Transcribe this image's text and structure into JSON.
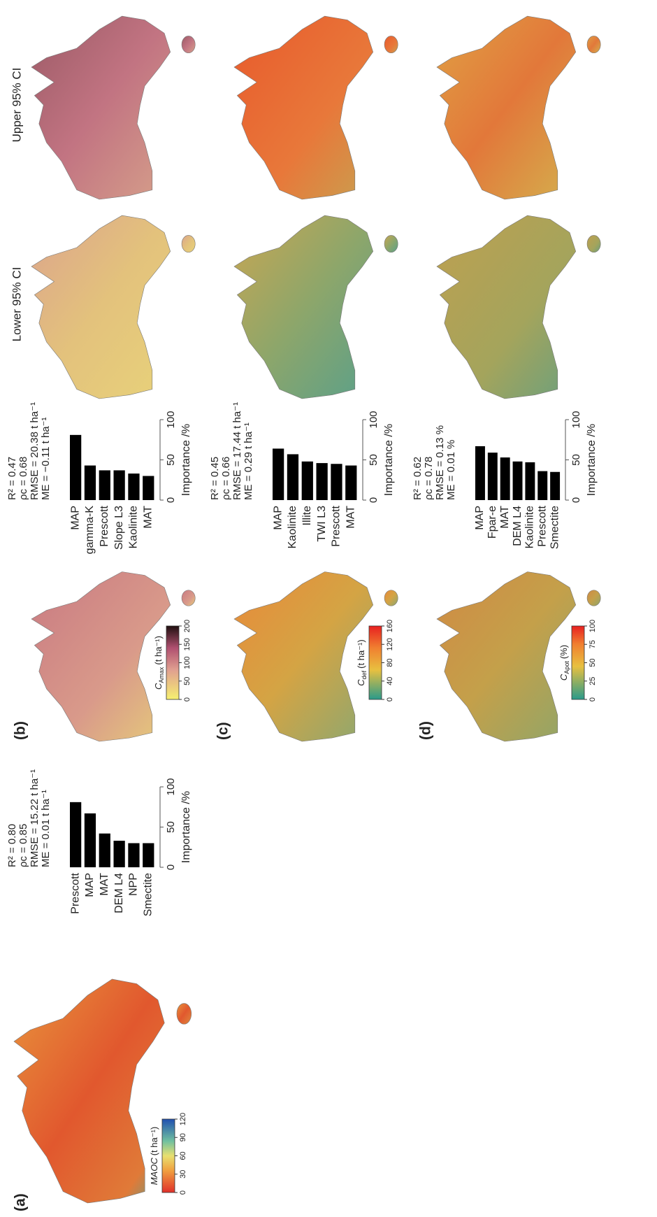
{
  "panel_labels": [
    "(a)",
    "(b)",
    "(c)",
    "(d)"
  ],
  "column_headers": [
    "Lower 95% CI",
    "Upper 95% CI"
  ],
  "colorbars": [
    {
      "symbol": "MAOC",
      "unit": "(t ha⁻¹)",
      "lim": [
        0,
        120
      ],
      "ticks": [
        0,
        30,
        60,
        90,
        120
      ]
    },
    {
      "symbol": "C",
      "subscript": "Amax",
      "unit": "(t ha⁻¹)",
      "lim": [
        0,
        200
      ],
      "ticks": [
        0,
        50,
        100,
        150,
        200
      ]
    },
    {
      "symbol": "C",
      "subscript": "def",
      "unit": "(t ha⁻¹)",
      "lim": [
        0,
        160
      ],
      "ticks": [
        0,
        40,
        80,
        120,
        160
      ]
    },
    {
      "symbol": "C",
      "subscript": "Apot",
      "unit": "(%)",
      "lim": [
        0,
        100
      ],
      "ticks": [
        0,
        25,
        50,
        75,
        100
      ]
    }
  ],
  "chart_data": [
    {
      "type": "bar",
      "stats": [
        "R² = 0.80",
        "ρc = 0.85",
        "RMSE = 15.22 t ha⁻¹",
        "ME = 0.01 t ha⁻¹"
      ],
      "categories": [
        "Prescott",
        "MAP",
        "MAT",
        "DEM L4",
        "NPP",
        "Smectite"
      ],
      "values": [
        81,
        67,
        42,
        33,
        30,
        30
      ],
      "color": "#000000",
      "ylim": [
        0,
        100
      ],
      "yticks": [
        0,
        50,
        100
      ],
      "ylabel": "Importance /%"
    },
    {
      "type": "bar",
      "stats": [
        "R² = 0.47",
        "ρc = 0.68",
        "RMSE = 20.38 t ha⁻¹",
        "ME = −0.11 t ha⁻¹"
      ],
      "categories": [
        "MAP",
        "gamma-K",
        "Prescott",
        "Slope L3",
        "Kaolinite",
        "MAT"
      ],
      "values": [
        81,
        43,
        37,
        37,
        33,
        30
      ],
      "color": "#000000",
      "ylim": [
        0,
        100
      ],
      "yticks": [
        0,
        50,
        100
      ],
      "ylabel": "Importance /%"
    },
    {
      "type": "bar",
      "stats": [
        "R² = 0.45",
        "ρc = 0.66",
        "RMSE = 17.44 t ha⁻¹",
        "ME = 0.29 t ha⁻¹"
      ],
      "categories": [
        "MAP",
        "Kaolinite",
        "Illite",
        "TWI L3",
        "Prescott",
        "MAT"
      ],
      "values": [
        64,
        57,
        48,
        46,
        45,
        43
      ],
      "color": "#000000",
      "ylim": [
        0,
        100
      ],
      "yticks": [
        0,
        50,
        100
      ],
      "ylabel": "Importance /%"
    },
    {
      "type": "bar",
      "stats": [
        "R² = 0.62",
        "ρc = 0.78",
        "RMSE = 0.13 %",
        "ME = 0.01 %"
      ],
      "categories": [
        "MAP",
        "Fpar-e",
        "MAT",
        "DEM L4",
        "Kaolinite",
        "Prescott",
        "Smectite"
      ],
      "values": [
        67,
        59,
        53,
        48,
        47,
        36,
        35
      ],
      "color": "#000000",
      "ylim": [
        0,
        100
      ],
      "yticks": [
        0,
        50,
        100
      ],
      "ylabel": "Importance /%"
    }
  ]
}
